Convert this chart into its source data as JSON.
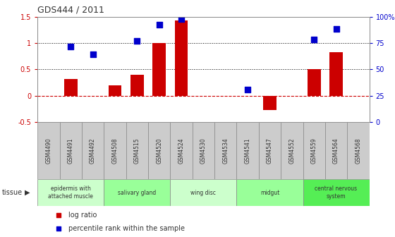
{
  "title": "GDS444 / 2011",
  "samples": [
    "GSM4490",
    "GSM4491",
    "GSM4492",
    "GSM4508",
    "GSM4515",
    "GSM4520",
    "GSM4524",
    "GSM4530",
    "GSM4534",
    "GSM4541",
    "GSM4547",
    "GSM4552",
    "GSM4559",
    "GSM4564",
    "GSM4568"
  ],
  "log_ratio": [
    0.0,
    0.32,
    0.0,
    0.19,
    0.4,
    1.0,
    1.43,
    0.0,
    0.0,
    0.0,
    -0.27,
    0.0,
    0.5,
    0.82,
    0.0
  ],
  "percentile_left": [
    null,
    0.93,
    0.78,
    null,
    1.04,
    1.35,
    1.46,
    null,
    null,
    0.12,
    null,
    null,
    1.06,
    1.27,
    null
  ],
  "tissue_groups": [
    {
      "label": "epidermis with\nattached muscle",
      "start": 0,
      "end": 3,
      "color": "#ccffcc"
    },
    {
      "label": "salivary gland",
      "start": 3,
      "end": 6,
      "color": "#99ff99"
    },
    {
      "label": "wing disc",
      "start": 6,
      "end": 9,
      "color": "#ccffcc"
    },
    {
      "label": "midgut",
      "start": 9,
      "end": 12,
      "color": "#99ff99"
    },
    {
      "label": "central nervous\nsystem",
      "start": 12,
      "end": 15,
      "color": "#55ee55"
    }
  ],
  "bar_color": "#cc0000",
  "percentile_color": "#0000cc",
  "ylim_left": [
    -0.5,
    1.5
  ],
  "ylim_right": [
    0,
    100
  ],
  "yticks_left": [
    -0.5,
    0.0,
    0.5,
    1.0,
    1.5
  ],
  "ytick_labels_left": [
    "-0.5",
    "0",
    "0.5",
    "1",
    "1.5"
  ],
  "yticks_right": [
    0,
    25,
    50,
    75,
    100
  ],
  "ytick_labels_right": [
    "0",
    "25",
    "50",
    "75",
    "100%"
  ],
  "zero_line_color": "#cc0000",
  "dotted_line_color": "#000000",
  "sample_box_color": "#cccccc",
  "spine_color": "#888888",
  "label_color": "#333333",
  "tissue_label": "tissue"
}
